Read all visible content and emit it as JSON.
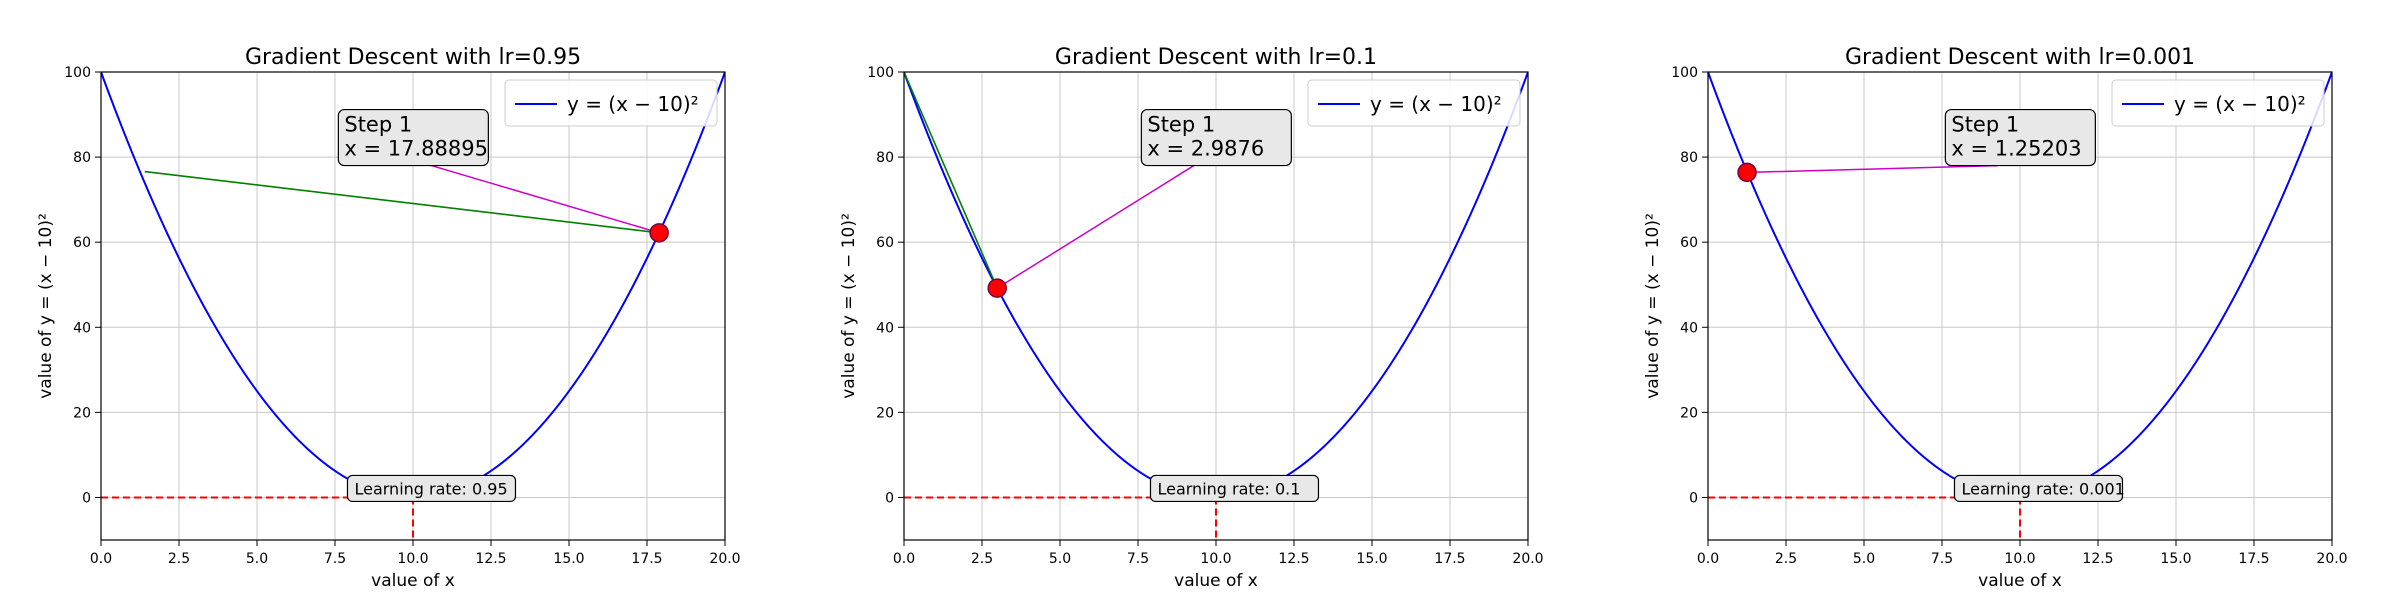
{
  "chart_data": [
    {
      "type": "line",
      "title": "Gradient Descent with lr=0.95",
      "xlabel": "value of x",
      "ylabel": "value of y = (x − 10)²",
      "xlim": [
        0,
        20
      ],
      "ylim": [
        -10,
        100
      ],
      "xticks": [
        "0.0",
        "2.5",
        "5.0",
        "7.5",
        "10.0",
        "12.5",
        "15.0",
        "17.5",
        "20.0"
      ],
      "yticks": [
        "0",
        "20",
        "40",
        "60",
        "80",
        "100"
      ],
      "grid": true,
      "legend": {
        "position": "top-right",
        "label": "y = (x − 10)²"
      },
      "curve": {
        "expression": "(x-10)^2",
        "color": "#0000ff"
      },
      "minimum": {
        "x": 10,
        "y": 0
      },
      "step_line": {
        "x": [
          1.4,
          17.88895
        ],
        "y": [
          76.6,
          62.2
        ],
        "color": "#008000"
      },
      "point": {
        "x": 17.88895,
        "y": 62.2,
        "color": "#ff0000"
      },
      "annotation": {
        "line1": "Step 1",
        "line2": "x = 17.88895",
        "at_x": 7.8,
        "at_y": 86
      },
      "lr_label": "Learning rate: 0.95"
    },
    {
      "type": "line",
      "title": "Gradient Descent with lr=0.1",
      "xlabel": "value of x",
      "ylabel": "value of y = (x − 10)²",
      "xlim": [
        0,
        20
      ],
      "ylim": [
        -10,
        100
      ],
      "xticks": [
        "0.0",
        "2.5",
        "5.0",
        "7.5",
        "10.0",
        "12.5",
        "15.0",
        "17.5",
        "20.0"
      ],
      "yticks": [
        "0",
        "20",
        "40",
        "60",
        "80",
        "100"
      ],
      "grid": true,
      "legend": {
        "position": "top-right",
        "label": "y = (x − 10)²"
      },
      "curve": {
        "expression": "(x-10)^2",
        "color": "#0000ff"
      },
      "minimum": {
        "x": 10,
        "y": 0
      },
      "step_line": {
        "x": [
          0,
          2.9876
        ],
        "y": [
          100,
          49.2
        ],
        "color": "#008000"
      },
      "point": {
        "x": 2.9876,
        "y": 49.2,
        "color": "#ff0000"
      },
      "annotation": {
        "line1": "Step 1",
        "line2": "x = 2.9876",
        "at_x": 7.8,
        "at_y": 86
      },
      "lr_label": "Learning rate: 0.1"
    },
    {
      "type": "line",
      "title": "Gradient Descent with lr=0.001",
      "xlabel": "value of x",
      "ylabel": "value of y = (x − 10)²",
      "xlim": [
        0,
        20
      ],
      "ylim": [
        -10,
        100
      ],
      "xticks": [
        "0.0",
        "2.5",
        "5.0",
        "7.5",
        "10.0",
        "12.5",
        "15.0",
        "17.5",
        "20.0"
      ],
      "yticks": [
        "0",
        "20",
        "40",
        "60",
        "80",
        "100"
      ],
      "grid": true,
      "legend": {
        "position": "top-right",
        "label": "y = (x − 10)²"
      },
      "curve": {
        "expression": "(x-10)^2",
        "color": "#0000ff"
      },
      "minimum": {
        "x": 10,
        "y": 0
      },
      "step_line": {
        "x": [
          1.2,
          1.25203
        ],
        "y": [
          77.4,
          76.4
        ],
        "color": "#008000"
      },
      "point": {
        "x": 1.25203,
        "y": 76.4,
        "color": "#ff0000"
      },
      "annotation": {
        "line1": "Step 1",
        "line2": "x = 1.25203",
        "at_x": 7.8,
        "at_y": 86
      },
      "lr_label": "Learning rate: 0.001"
    }
  ],
  "colors": {
    "curve": "#0000ff",
    "step_line": "#008000",
    "point": "#ff0000",
    "arrow": "#cc00cc",
    "guide": "#ff0000",
    "box_fill": "#e8e8e8",
    "grid": "#c8c8c8"
  }
}
